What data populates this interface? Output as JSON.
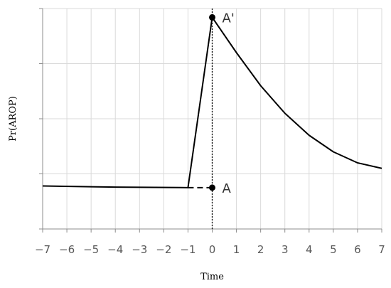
{
  "chart_data": {
    "type": "line",
    "title": "",
    "xlabel": "Time",
    "ylabel": "Pr(AROP)",
    "xlim": [
      -7,
      7
    ],
    "ylim": [
      0,
      4
    ],
    "xticks": [
      -7,
      -6,
      -5,
      -4,
      -3,
      -2,
      -1,
      0,
      1,
      2,
      3,
      4,
      5,
      6,
      7
    ],
    "xtick_labels": [
      "−7",
      "−6",
      "−5",
      "−4",
      "−3",
      "−2",
      "−1",
      "0",
      "1",
      "2",
      "3",
      "4",
      "5",
      "6",
      "7"
    ],
    "yticks": [
      0,
      1,
      2,
      3,
      4
    ],
    "grid": true,
    "legend": "none",
    "series": [
      {
        "style": "solid",
        "color": "#000000",
        "x": [
          -7,
          -4,
          -1,
          0,
          1,
          2,
          3,
          4,
          5,
          6,
          7
        ],
        "y": [
          0.78,
          0.76,
          0.75,
          3.84,
          3.2,
          2.6,
          2.1,
          1.7,
          1.4,
          1.2,
          1.1
        ]
      },
      {
        "style": "dashed",
        "color": "#000000",
        "x": [
          -1,
          0
        ],
        "y": [
          0.75,
          0.75
        ]
      }
    ],
    "reference_line": {
      "axis": "x",
      "value": 0,
      "style": "dotted"
    },
    "points": [
      {
        "label": "A'",
        "x": 0,
        "y": 3.84
      },
      {
        "label": "A",
        "x": 0,
        "y": 0.75
      }
    ]
  }
}
